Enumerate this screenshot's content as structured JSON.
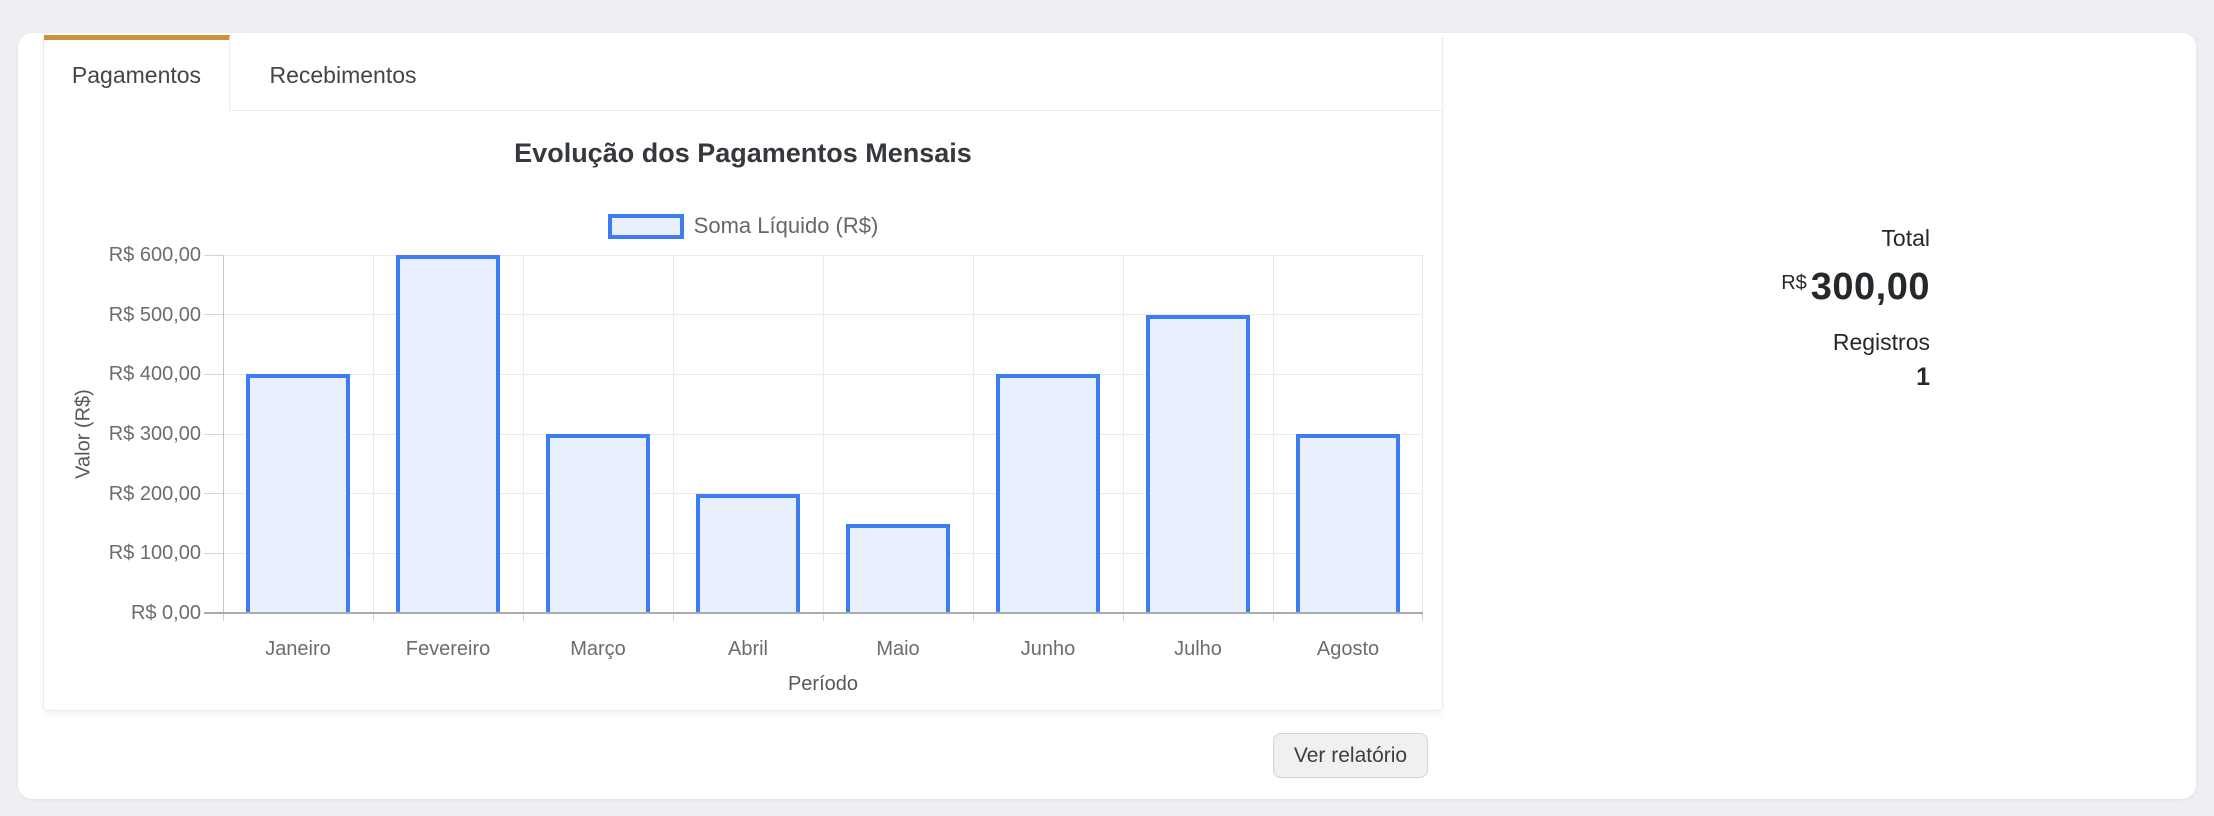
{
  "tabs": [
    {
      "label": "Pagamentos",
      "active": true
    },
    {
      "label": "Recebimentos",
      "active": false
    }
  ],
  "summary": {
    "total_label": "Total",
    "currency": "R$",
    "total_value": "300,00",
    "registros_label": "Registros",
    "registros_value": "1"
  },
  "actions": {
    "view_report_label": "Ver relatório"
  },
  "colors": {
    "accent_orange": "#d1903c",
    "bar_border": "#3e7cf4",
    "bar_fill": "#e9f0fd",
    "gridline": "#eaeaec",
    "axis_line": "#a8abae"
  },
  "chart_data": {
    "type": "bar",
    "title": "Evolução dos Pagamentos Mensais",
    "categories": [
      "Janeiro",
      "Fevereiro",
      "Março",
      "Abril",
      "Maio",
      "Junho",
      "Julho",
      "Agosto"
    ],
    "series": [
      {
        "name": "Soma Líquido (R$)",
        "values": [
          400,
          600,
          300,
          200,
          150,
          400,
          500,
          300
        ]
      }
    ],
    "xlabel": "Período",
    "ylabel": "Valor (R$)",
    "ylim": [
      0,
      600
    ],
    "ytick_step": 100,
    "ytick_labels": [
      "R$ 0,00",
      "R$ 100,00",
      "R$ 200,00",
      "R$ 300,00",
      "R$ 400,00",
      "R$ 500,00",
      "R$ 600,00"
    ],
    "grid": true,
    "legend_position": "top"
  }
}
